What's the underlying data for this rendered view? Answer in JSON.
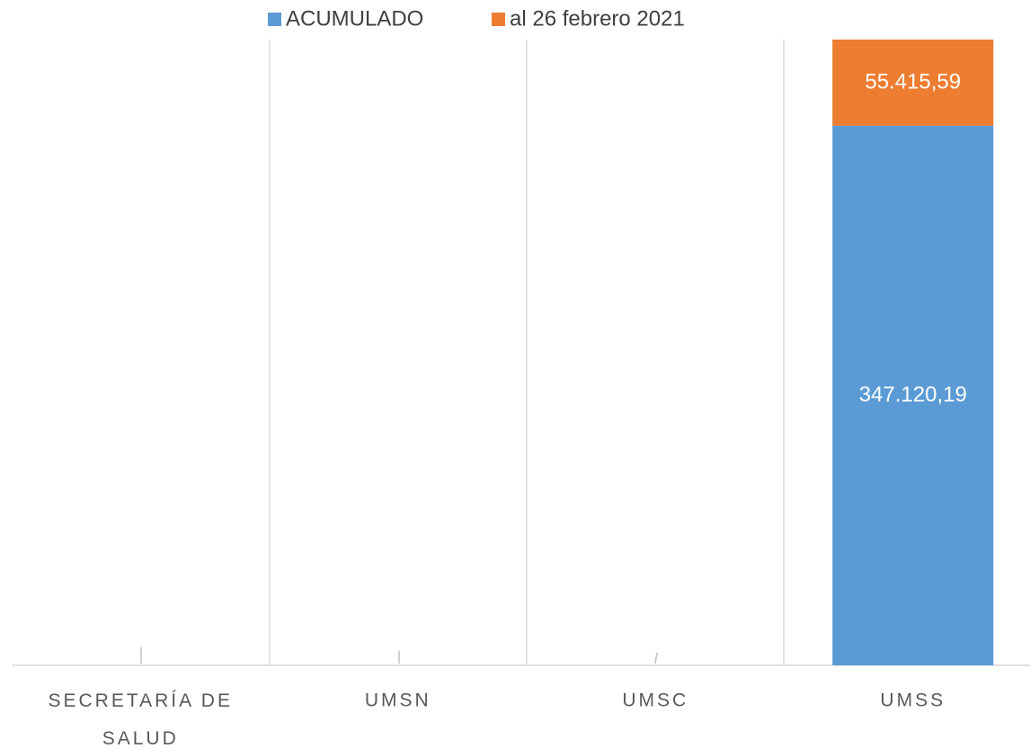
{
  "chart_data": {
    "type": "stacked_bar",
    "categories": [
      "SECRETARÍA DE SALUD",
      "UMSN",
      "UMSC",
      "UMSS"
    ],
    "series": [
      {
        "name": "ACUMULADO",
        "color": "#5b9bd5",
        "values": [
          null,
          null,
          null,
          347120.19
        ],
        "value_labels": [
          null,
          null,
          null,
          "347.120,19"
        ]
      },
      {
        "name": "al 26 febrero 2021",
        "color": "#ed7d31",
        "values": [
          null,
          null,
          null,
          55415.59
        ],
        "value_labels": [
          null,
          null,
          null,
          "55.415,59"
        ]
      }
    ],
    "ylim": [
      0,
      402536
    ],
    "legend": "top"
  }
}
